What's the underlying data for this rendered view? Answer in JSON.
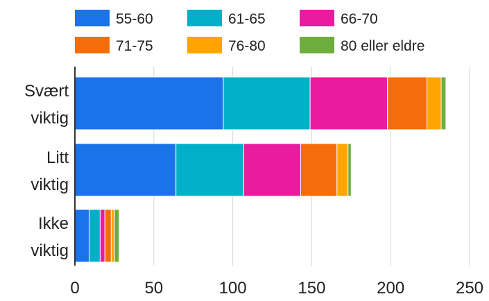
{
  "chart_data": {
    "type": "bar",
    "orientation": "horizontal",
    "stacked": true,
    "categories": [
      [
        "Svært",
        "viktig"
      ],
      [
        "Litt",
        "viktig"
      ],
      [
        "Ikke",
        "viktig"
      ]
    ],
    "series": [
      {
        "name": "55-60",
        "color": "#1a73e8",
        "values": [
          94,
          64,
          9
        ]
      },
      {
        "name": "61-65",
        "color": "#00b0c8",
        "values": [
          55,
          43,
          7
        ]
      },
      {
        "name": "66-70",
        "color": "#e91ca0",
        "values": [
          49,
          36,
          3
        ]
      },
      {
        "name": "71-75",
        "color": "#f56c0a",
        "values": [
          25,
          23,
          4
        ]
      },
      {
        "name": "76-80",
        "color": "#ffa500",
        "values": [
          9,
          7,
          2
        ]
      },
      {
        "name": "80 eller eldre",
        "color": "#6fac3e",
        "values": [
          3,
          2,
          3
        ]
      }
    ],
    "xlim": [
      0,
      250
    ],
    "xticks": [
      0,
      50,
      100,
      150,
      200,
      250
    ],
    "grid": true,
    "legend": "top",
    "title": "",
    "xlabel": "",
    "ylabel": ""
  }
}
